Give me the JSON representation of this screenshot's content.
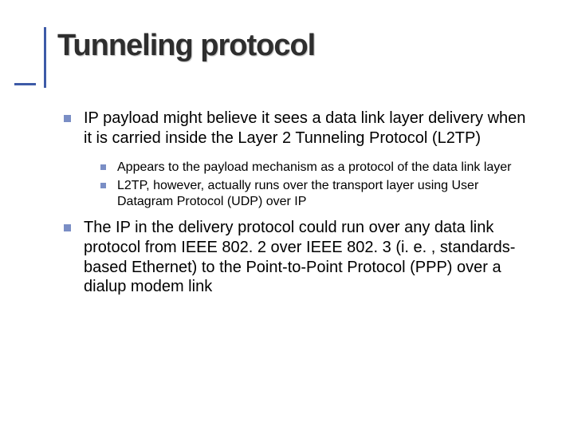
{
  "colors": {
    "accent": "#3d5aa7",
    "bullet": "#7a8ec5",
    "text": "#000000",
    "background": "#ffffff",
    "title": "#2e2e2e"
  },
  "title": "Tunneling protocol",
  "typography": {
    "title_fontsize": 38,
    "title_weight": "bold",
    "body_fontsize": 20,
    "sub_fontsize": 16,
    "font_family": "Verdana"
  },
  "bullets": [
    {
      "text": "IP payload might believe it sees a data link layer delivery when it is carried inside the Layer 2 Tunneling Protocol (L2TP)",
      "children": [
        {
          "text": "Appears to the payload mechanism as a protocol of the data link layer"
        },
        {
          "text": "L2TP, however, actually runs over the transport layer using User Datagram Protocol (UDP) over IP"
        }
      ]
    },
    {
      "text": "The IP in the delivery protocol could run over any data link protocol from IEEE 802. 2 over IEEE 802. 3 (i. e. , standards-based Ethernet) to the Point-to-Point Protocol (PPP) over a dialup modem link",
      "children": []
    }
  ]
}
